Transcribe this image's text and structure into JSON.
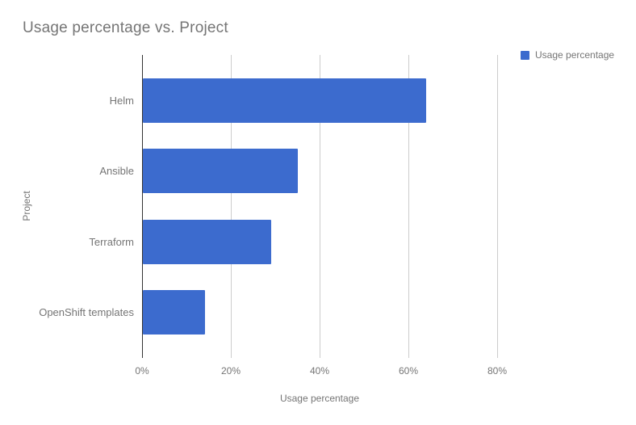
{
  "title": "Usage percentage vs. Project",
  "legend": {
    "label": "Usage percentage"
  },
  "axes": {
    "x_title": "Usage percentage",
    "y_title": "Project"
  },
  "chart_data": {
    "type": "bar",
    "orientation": "horizontal",
    "title": "Usage percentage vs. Project",
    "categories": [
      "Helm",
      "Ansible",
      "Terraform",
      "OpenShift templates"
    ],
    "series": [
      {
        "name": "Usage percentage",
        "values": [
          64,
          35,
          29,
          14
        ]
      }
    ],
    "xlabel": "Usage percentage",
    "ylabel": "Project",
    "xlim": [
      0,
      80
    ],
    "x_ticks": [
      "0%",
      "20%",
      "40%",
      "60%",
      "80%"
    ],
    "x_tick_values": [
      0,
      20,
      40,
      60,
      80
    ],
    "grid": true,
    "legend_position": "top-right",
    "colors": {
      "bar": "#3c6bce",
      "gridline": "#cccccc",
      "baseline": "#333333",
      "text": "#757575",
      "background": "#ffffff"
    }
  }
}
